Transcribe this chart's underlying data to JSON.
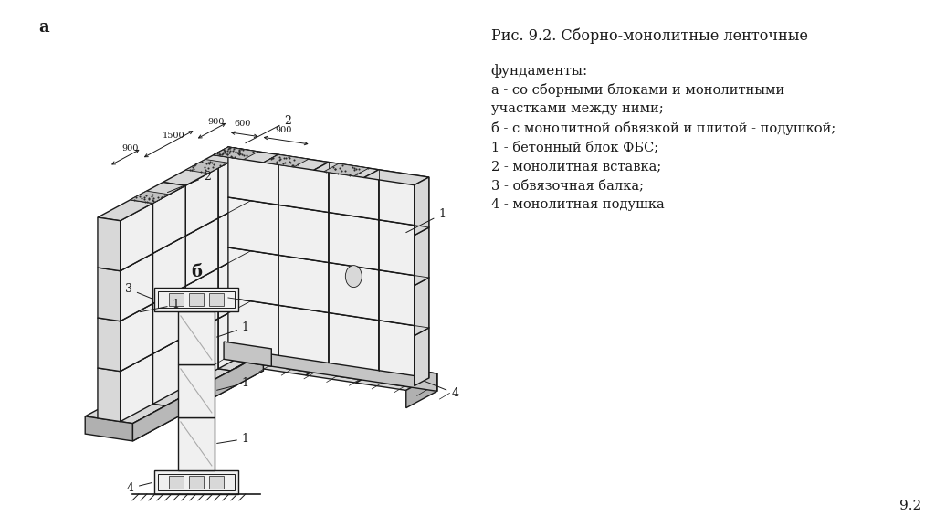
{
  "bg_color": "#ffffff",
  "title": "Рис. 9.2. Сборно-монолитные ленточные",
  "legend_lines": [
    "фундаменты:",
    "а - со сборными блоками и монолитными",
    "участками между ними;",
    "б - с монолитной обвязкой и плитой - подушкой;",
    "1 - бетонный блок ФБС;",
    "2 - монолитная вставка;",
    "3 - обвязочная балка;",
    "4 - монолитная подушка"
  ],
  "page_num": "9.2",
  "label_a": "а",
  "label_b": "б",
  "color_main": "#1a1a1a",
  "color_light": "#f0f0f0",
  "color_mid": "#d8d8d8",
  "color_dark": "#b0b0b0",
  "color_stipple": "#888888"
}
